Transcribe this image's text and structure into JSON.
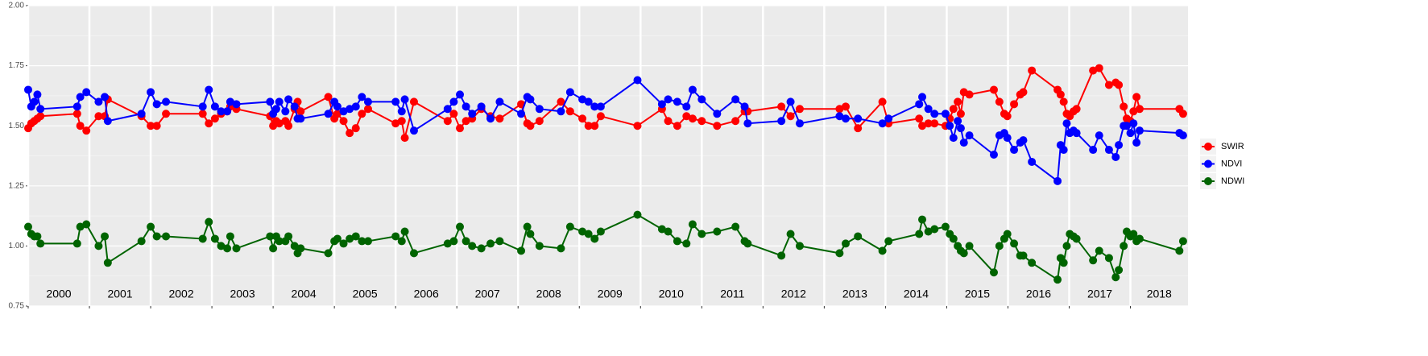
{
  "chart_data": {
    "type": "line",
    "xlim": [
      2000,
      2018.94
    ],
    "xticks": [
      2000,
      2001,
      2002,
      2003,
      2004,
      2005,
      2006,
      2007,
      2008,
      2009,
      2010,
      2011,
      2012,
      2013,
      2014,
      2015,
      2016,
      2017,
      2018
    ],
    "year_labels": [
      "2000",
      "2001",
      "2002",
      "2003",
      "2004",
      "2005",
      "2006",
      "2007",
      "2008",
      "2009",
      "2010",
      "2011",
      "2012",
      "2013",
      "2014",
      "2015",
      "2016",
      "2017",
      "2018"
    ],
    "ylim": [
      0.75,
      2.0
    ],
    "yticks": [
      {
        "value": 0.75,
        "label": "0.75"
      },
      {
        "value": 1.0,
        "label": "1.00"
      },
      {
        "value": 1.25,
        "label": "1.25"
      },
      {
        "value": 1.5,
        "label": "1.50"
      },
      {
        "value": 1.75,
        "label": "1.75"
      },
      {
        "value": 2.0,
        "label": "2.00"
      }
    ],
    "grid": true,
    "legend": "right",
    "x": [
      2000.0,
      2000.05,
      2000.1,
      2000.15,
      2000.2,
      2000.8,
      2000.85,
      2000.95,
      2001.15,
      2001.25,
      2001.3,
      2001.85,
      2002.0,
      2002.1,
      2002.25,
      2002.85,
      2002.95,
      2003.05,
      2003.15,
      2003.25,
      2003.3,
      2003.4,
      2003.95,
      2004.0,
      2004.05,
      2004.1,
      2004.2,
      2004.25,
      2004.35,
      2004.4,
      2004.45,
      2004.9,
      2005.0,
      2005.05,
      2005.15,
      2005.25,
      2005.35,
      2005.45,
      2005.55,
      2006.0,
      2006.1,
      2006.15,
      2006.3,
      2006.85,
      2006.95,
      2007.05,
      2007.15,
      2007.25,
      2007.4,
      2007.55,
      2007.7,
      2008.05,
      2008.15,
      2008.2,
      2008.35,
      2008.7,
      2008.85,
      2009.05,
      2009.15,
      2009.25,
      2009.35,
      2009.95,
      2010.35,
      2010.45,
      2010.6,
      2010.75,
      2010.85,
      2011.0,
      2011.25,
      2011.55,
      2011.7,
      2011.75,
      2012.3,
      2012.45,
      2012.6,
      2013.25,
      2013.35,
      2013.55,
      2013.95,
      2014.05,
      2014.55,
      2014.6,
      2014.7,
      2014.8,
      2014.98,
      2015.05,
      2015.11,
      2015.18,
      2015.23,
      2015.28,
      2015.37,
      2015.77,
      2015.86,
      2015.94,
      2015.99,
      2016.1,
      2016.2,
      2016.25,
      2016.39,
      2016.81,
      2016.86,
      2016.91,
      2016.96,
      2017.01,
      2017.07,
      2017.12,
      2017.39,
      2017.49,
      2017.65,
      2017.76,
      2017.81,
      2017.89,
      2017.94,
      2018.0,
      2018.05,
      2018.1,
      2018.15,
      2018.8,
      2018.86
    ],
    "series": [
      {
        "name": "SWIR",
        "color": "#ff0000",
        "values": [
          1.49,
          1.51,
          1.52,
          1.53,
          1.54,
          1.55,
          1.5,
          1.48,
          1.54,
          1.54,
          1.61,
          1.54,
          1.5,
          1.5,
          1.55,
          1.55,
          1.51,
          1.53,
          1.55,
          1.56,
          1.58,
          1.57,
          1.54,
          1.5,
          1.52,
          1.51,
          1.52,
          1.5,
          1.57,
          1.6,
          1.56,
          1.62,
          1.53,
          1.55,
          1.52,
          1.47,
          1.49,
          1.55,
          1.57,
          1.51,
          1.52,
          1.45,
          1.6,
          1.52,
          1.55,
          1.49,
          1.52,
          1.53,
          1.57,
          1.54,
          1.53,
          1.59,
          1.51,
          1.5,
          1.52,
          1.6,
          1.56,
          1.53,
          1.5,
          1.5,
          1.54,
          1.5,
          1.57,
          1.52,
          1.5,
          1.54,
          1.53,
          1.52,
          1.5,
          1.52,
          1.56,
          1.56,
          1.58,
          1.54,
          1.57,
          1.57,
          1.58,
          1.49,
          1.6,
          1.51,
          1.53,
          1.5,
          1.51,
          1.51,
          1.5,
          1.53,
          1.57,
          1.6,
          1.55,
          1.64,
          1.63,
          1.65,
          1.6,
          1.55,
          1.54,
          1.59,
          1.63,
          1.64,
          1.73,
          1.65,
          1.63,
          1.6,
          1.55,
          1.54,
          1.56,
          1.57,
          1.73,
          1.74,
          1.67,
          1.68,
          1.67,
          1.58,
          1.53,
          1.52,
          1.56,
          1.62,
          1.57,
          1.57,
          1.55
        ]
      },
      {
        "name": "NDVI",
        "color": "#0000ff",
        "values": [
          1.65,
          1.58,
          1.6,
          1.63,
          1.57,
          1.58,
          1.62,
          1.64,
          1.6,
          1.62,
          1.52,
          1.55,
          1.64,
          1.59,
          1.6,
          1.58,
          1.65,
          1.58,
          1.56,
          1.56,
          1.6,
          1.59,
          1.6,
          1.55,
          1.57,
          1.6,
          1.56,
          1.61,
          1.58,
          1.53,
          1.53,
          1.55,
          1.6,
          1.58,
          1.56,
          1.57,
          1.58,
          1.62,
          1.6,
          1.6,
          1.56,
          1.61,
          1.48,
          1.57,
          1.6,
          1.63,
          1.58,
          1.55,
          1.58,
          1.53,
          1.6,
          1.55,
          1.62,
          1.61,
          1.57,
          1.56,
          1.64,
          1.61,
          1.6,
          1.58,
          1.58,
          1.69,
          1.59,
          1.61,
          1.6,
          1.58,
          1.65,
          1.61,
          1.55,
          1.61,
          1.58,
          1.51,
          1.52,
          1.6,
          1.51,
          1.54,
          1.53,
          1.53,
          1.51,
          1.53,
          1.59,
          1.62,
          1.57,
          1.55,
          1.55,
          1.5,
          1.45,
          1.52,
          1.49,
          1.43,
          1.46,
          1.38,
          1.46,
          1.47,
          1.45,
          1.4,
          1.43,
          1.44,
          1.35,
          1.27,
          1.42,
          1.4,
          1.51,
          1.47,
          1.48,
          1.47,
          1.4,
          1.46,
          1.4,
          1.37,
          1.42,
          1.5,
          1.5,
          1.47,
          1.51,
          1.43,
          1.48,
          1.47,
          1.46
        ]
      },
      {
        "name": "NDWI",
        "color": "#006400",
        "values": [
          1.08,
          1.05,
          1.04,
          1.04,
          1.01,
          1.01,
          1.08,
          1.09,
          1.0,
          1.04,
          0.93,
          1.02,
          1.08,
          1.04,
          1.04,
          1.03,
          1.1,
          1.03,
          1.0,
          0.99,
          1.04,
          0.99,
          1.04,
          0.99,
          1.04,
          1.02,
          1.02,
          1.04,
          1.0,
          0.97,
          0.99,
          0.97,
          1.02,
          1.03,
          1.01,
          1.03,
          1.04,
          1.02,
          1.02,
          1.04,
          1.02,
          1.06,
          0.97,
          1.01,
          1.02,
          1.08,
          1.02,
          1.0,
          0.99,
          1.01,
          1.02,
          0.98,
          1.08,
          1.05,
          1.0,
          0.99,
          1.08,
          1.06,
          1.05,
          1.03,
          1.06,
          1.13,
          1.07,
          1.06,
          1.02,
          1.01,
          1.09,
          1.05,
          1.06,
          1.08,
          1.02,
          1.01,
          0.96,
          1.05,
          1.0,
          0.97,
          1.01,
          1.04,
          0.98,
          1.02,
          1.05,
          1.11,
          1.06,
          1.07,
          1.08,
          1.05,
          1.03,
          1.0,
          0.98,
          0.97,
          1.0,
          0.89,
          1.0,
          1.03,
          1.05,
          1.01,
          0.96,
          0.96,
          0.93,
          0.86,
          0.95,
          0.93,
          1.0,
          1.05,
          1.04,
          1.03,
          0.94,
          0.98,
          0.95,
          0.87,
          0.9,
          1.0,
          1.06,
          1.04,
          1.05,
          1.02,
          1.03,
          0.98,
          1.02
        ]
      }
    ]
  }
}
